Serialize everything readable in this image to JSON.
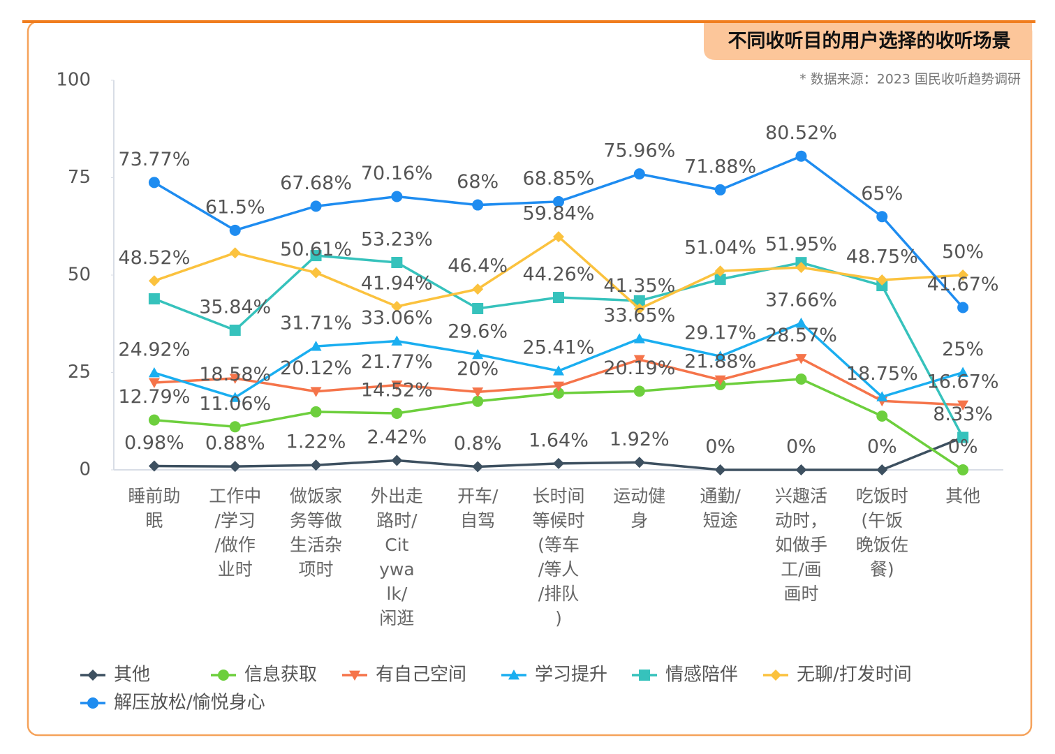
{
  "chart_data": {
    "type": "line",
    "title": "不同收听目的用户选择的收听场景",
    "source": "* 数据来源：2023 国民收听趋势调研",
    "categories": [
      "睡前助眠",
      "工作中/学习/做作业时",
      "做饭家务等做生活杂项时",
      "外出走路时/Citywalk/闲逛",
      "开车/自驾",
      "长时间等候时(等车/等人/排队)",
      "运动健身",
      "通勤/短途",
      "兴趣活动时，如做手工/画画时",
      "吃饭时(午饭晚饭佐餐)",
      "其他"
    ],
    "ylim": [
      0,
      100
    ],
    "yticks": [
      0,
      25,
      50,
      75,
      100
    ],
    "grid": false,
    "legend": "bottom",
    "series": [
      {
        "name": "其他",
        "color": "#3d5060",
        "marker": "diamond",
        "values": [
          0.98,
          0.88,
          1.22,
          2.42,
          0.8,
          1.64,
          1.92,
          0,
          0,
          0,
          8.33
        ],
        "value_labels": [
          "0.98%",
          "0.88%",
          "1.22%",
          "2.42%",
          "0.8%",
          "1.64%",
          "1.92%",
          "0%",
          "0%",
          "0%",
          "8.33%"
        ]
      },
      {
        "name": "信息获取",
        "color": "#6dcf3d",
        "marker": "circle",
        "values": [
          12.79,
          11.06,
          14.9,
          14.52,
          17.6,
          19.7,
          20.19,
          21.88,
          23.3,
          13.8,
          0
        ],
        "value_labels": [
          "12.79%",
          "11.06%",
          null,
          "14.52%",
          null,
          null,
          "20.19%",
          "21.88%",
          null,
          null,
          "0%"
        ]
      },
      {
        "name": "有自己空间",
        "color": "#f5744a",
        "marker": "triangle-down",
        "values": [
          22.4,
          23.5,
          20.12,
          21.77,
          20,
          21.5,
          28.3,
          23.1,
          28.57,
          17.7,
          16.67
        ],
        "value_labels": [
          null,
          null,
          "20.12%",
          "21.77%",
          "20%",
          null,
          null,
          null,
          "28.57%",
          null,
          "16.67%"
        ]
      },
      {
        "name": "学习提升",
        "color": "#1aaef0",
        "marker": "triangle-up",
        "values": [
          24.92,
          18.58,
          31.71,
          33.06,
          29.6,
          25.41,
          33.65,
          29.17,
          37.66,
          18.75,
          25
        ],
        "value_labels": [
          "24.92%",
          "18.58%",
          "31.71%",
          "33.06%",
          "29.6%",
          "25.41%",
          "33.65%",
          "29.17%",
          "37.66%",
          "18.75%",
          "25%"
        ]
      },
      {
        "name": "情感陪伴",
        "color": "#36c2bc",
        "marker": "square",
        "values": [
          43.9,
          35.84,
          55,
          53.23,
          41.4,
          44.26,
          43.4,
          48.9,
          53.2,
          47.3,
          8.33
        ],
        "value_labels": [
          null,
          "35.84%",
          null,
          "53.23%",
          null,
          "44.26%",
          null,
          null,
          null,
          null,
          null
        ]
      },
      {
        "name": "无聊/打发时间",
        "color": "#fbc23e",
        "marker": "diamond",
        "values": [
          48.52,
          55.7,
          50.61,
          41.94,
          46.4,
          59.84,
          41.35,
          51.04,
          51.95,
          48.75,
          50
        ],
        "value_labels": [
          "48.52%",
          null,
          "50.61%",
          "41.94%",
          "46.4%",
          "59.84%",
          "41.35%",
          "51.04%",
          "51.95%",
          "48.75%",
          "50%"
        ]
      },
      {
        "name": "解压放松/愉悦身心",
        "color": "#1e8cf0",
        "marker": "circle",
        "values": [
          73.77,
          61.5,
          67.68,
          70.16,
          68,
          68.85,
          75.96,
          71.88,
          80.52,
          65,
          41.67
        ],
        "value_labels": [
          "73.77%",
          "61.5%",
          "67.68%",
          "70.16%",
          "68%",
          "68.85%",
          "75.96%",
          "71.88%",
          "80.52%",
          "65%",
          "41.67%"
        ]
      }
    ]
  }
}
